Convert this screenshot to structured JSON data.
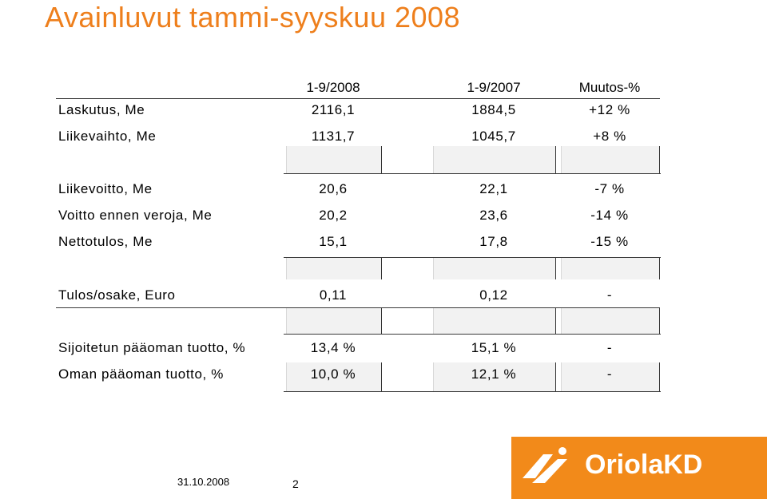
{
  "title": "Avainluvut tammi-syyskuu 2008",
  "columns": [
    "1-9/2008",
    "1-9/2007",
    "Muutos-%"
  ],
  "rows": [
    {
      "label": "Laskutus, Me",
      "v2008": "2116,1",
      "v2007": "1884,5",
      "change": "+12 %"
    },
    {
      "label": "Liikevaihto, Me",
      "v2008": "1131,7",
      "v2007": "1045,7",
      "change": "+8 %"
    },
    {
      "label": "Liikevoitto, Me",
      "v2008": "20,6",
      "v2007": "22,1",
      "change": "-7 %"
    },
    {
      "label": "Voitto ennen veroja, Me",
      "v2008": "20,2",
      "v2007": "23,6",
      "change": "-14 %"
    },
    {
      "label": "Nettotulos, Me",
      "v2008": "15,1",
      "v2007": "17,8",
      "change": "-15 %"
    },
    {
      "label": "Tulos/osake, Euro",
      "v2008": "0,11",
      "v2007": "0,12",
      "change": "-"
    },
    {
      "label": "Sijoitetun pääoman tuotto, %",
      "v2008": "13,4 %",
      "v2007": "15,1 %",
      "change": "-"
    },
    {
      "label": "Oman pääoman tuotto, %",
      "v2008": "10,0 %",
      "v2007": "12,1 %",
      "change": "-"
    }
  ],
  "footer": {
    "date": "31.10.2008",
    "page": "2"
  },
  "logo": {
    "text": "OriolaKD"
  },
  "colors": {
    "title": "#ee7f1c",
    "logo_bg": "#f28a1a",
    "shade": "#f2f2f2"
  }
}
